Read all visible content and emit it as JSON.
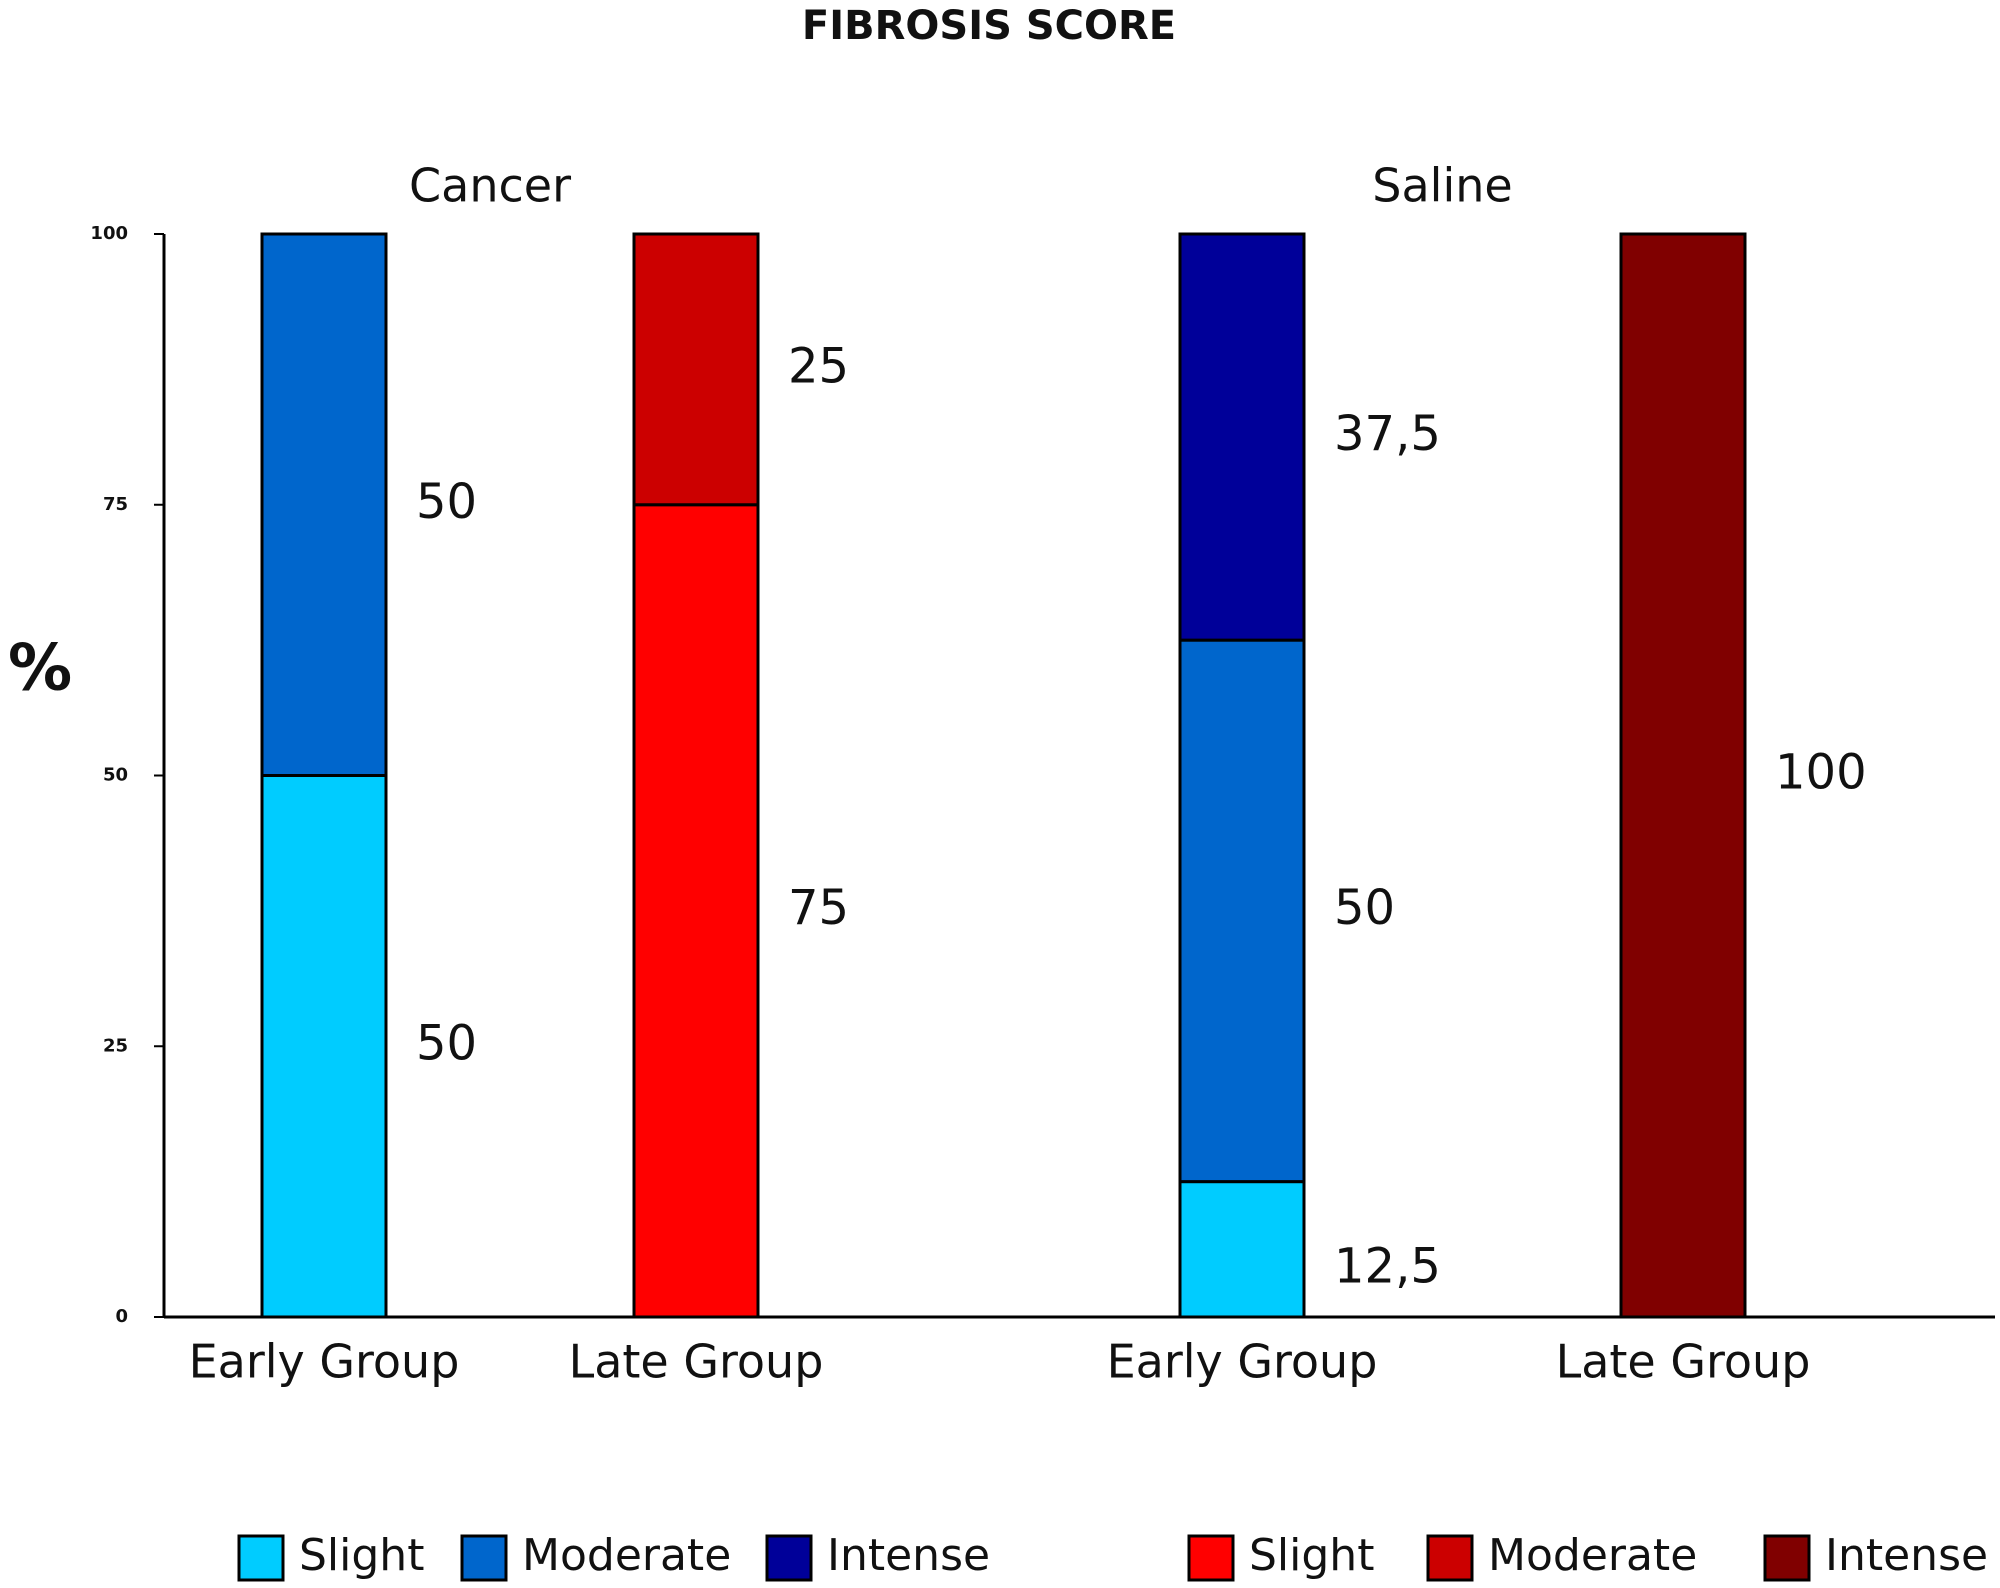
{
  "chart_data": {
    "type": "stacked_bar",
    "title": "FIBROSIS  SCORE",
    "y_label": "%",
    "group_labels": [
      "Cancer",
      "Saline"
    ],
    "categories": [
      "Early Group",
      "Late Group",
      "Early Group",
      "Late Group"
    ],
    "series": [
      {
        "name": "Slight",
        "color": "#00ccff",
        "values": [
          50,
          null,
          12.5,
          null
        ],
        "value_labels": [
          "50",
          null,
          "12,5",
          null
        ]
      },
      {
        "name": "Moderate",
        "color": "#0066cc",
        "values": [
          50,
          null,
          50,
          null
        ]
      },
      {
        "name": "Intense",
        "color": "#000099",
        "values": [
          null,
          null,
          37.5,
          null
        ],
        "value_labels": [
          null,
          null,
          "37,5",
          null
        ]
      },
      {
        "name": "Slight",
        "color": "#ff0000",
        "values": [
          null,
          75,
          null,
          null
        ]
      },
      {
        "name": "Moderate",
        "color": "#cc0000",
        "values": [
          null,
          25,
          null,
          null
        ]
      },
      {
        "name": "Intense",
        "color": "#800000",
        "values": [
          null,
          null,
          null,
          100
        ]
      }
    ],
    "ylim": [
      0,
      100
    ],
    "yticks": [
      0,
      25,
      50,
      75,
      100
    ],
    "grid": false
  }
}
